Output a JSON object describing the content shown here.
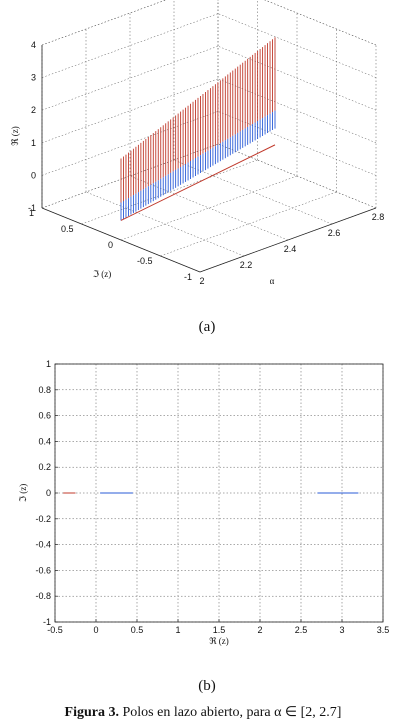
{
  "chart_data": [
    {
      "type": "surface3d",
      "panel_label": "(a)",
      "xlabel": "α",
      "ylabel": "ℑ (z)",
      "zlabel": "ℜ (z)",
      "xlim": [
        2,
        2.8
      ],
      "ylim": [
        -1,
        1
      ],
      "zlim": [
        -1,
        4
      ],
      "x_ticks": [
        "2",
        "2.2",
        "2.4",
        "2.6",
        "2.8"
      ],
      "y_ticks": [
        "-1",
        "-0.5",
        "0",
        "0.5",
        "1"
      ],
      "z_ticks": [
        "-1",
        "0",
        "1",
        "2",
        "3",
        "4"
      ],
      "series": [
        {
          "color": "#c0392b",
          "alpha": [
            2,
            2.7
          ],
          "re_z": [
            1.5,
            3.5
          ],
          "im_z": 0
        },
        {
          "color": "#2a5bd7",
          "alpha": [
            2,
            2.7
          ],
          "re_z": [
            -0.4,
            0.7
          ],
          "im_z": 0
        },
        {
          "color": "#c0392b",
          "alpha": [
            2,
            2.7
          ],
          "re_z": [
            -0.4,
            0.2
          ],
          "im_z": 0
        }
      ],
      "grid": true
    },
    {
      "type": "scatter",
      "panel_label": "(b)",
      "xlabel": "ℜ (z)",
      "ylabel": "ℑ (z)",
      "xlim": [
        -0.5,
        3.5
      ],
      "ylim": [
        -1,
        1
      ],
      "x_ticks": [
        "-0.5",
        "0",
        "0.5",
        "1",
        "1.5",
        "2",
        "2.5",
        "3",
        "3.5"
      ],
      "y_ticks": [
        "-1",
        "-0.8",
        "-0.6",
        "-0.4",
        "-0.2",
        "0",
        "0.2",
        "0.4",
        "0.6",
        "0.8",
        "1"
      ],
      "series": [
        {
          "color": "#c0392b",
          "x": [
            -0.4,
            -0.25
          ],
          "y": [
            0,
            0
          ]
        },
        {
          "color": "#2a5bd7",
          "x": [
            0.05,
            0.45
          ],
          "y": [
            0,
            0
          ]
        },
        {
          "color": "#2a5bd7",
          "x": [
            2.7,
            3.2
          ],
          "y": [
            0,
            0
          ]
        }
      ],
      "grid": true
    }
  ],
  "caption": {
    "label": "Figura 3.",
    "text": " Polos en lazo abierto, para α ∈ [2,  2.7]"
  }
}
